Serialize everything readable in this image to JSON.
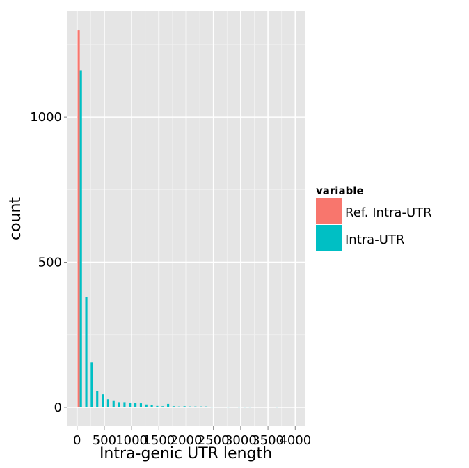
{
  "chart_data": {
    "type": "bar",
    "title": "",
    "xlabel": "Intra-genic UTR length",
    "ylabel": "count",
    "xlim": [
      -175,
      4175
    ],
    "ylim": [
      -65,
      1365
    ],
    "x_ticks": [
      0,
      500,
      1000,
      1500,
      2000,
      2500,
      3000,
      3500,
      4000
    ],
    "x_tick_labels": [
      "0",
      "500",
      "1000",
      "1500",
      "2000",
      "2500",
      "3000",
      "3500",
      "4000"
    ],
    "y_ticks": [
      0,
      500,
      1000
    ],
    "y_tick_labels": [
      "0",
      "500",
      "1000"
    ],
    "grid": true,
    "bin_width": 100,
    "bar_width": 40,
    "x": [
      50,
      150,
      250,
      350,
      450,
      550,
      650,
      750,
      850,
      950,
      1050,
      1150,
      1250,
      1350,
      1450,
      1550,
      1650,
      1750,
      1850,
      1950,
      2050,
      2150,
      2250,
      2350,
      2450,
      2550,
      2650,
      2750,
      2850,
      2950,
      3050,
      3150,
      3250,
      3350,
      3450,
      3550,
      3650,
      3750,
      3850,
      3950
    ],
    "series": [
      {
        "name": "Ref. Intra-UTR",
        "color": "#F8766D",
        "offset": -20,
        "values": [
          1300,
          0,
          0,
          0,
          0,
          0,
          0,
          0,
          0,
          0,
          0,
          0,
          0,
          0,
          0,
          0,
          0,
          0,
          0,
          0,
          0,
          0,
          0,
          0,
          0,
          0,
          0,
          0,
          0,
          0,
          0,
          0,
          0,
          0,
          0,
          0,
          0,
          0,
          0,
          0
        ]
      },
      {
        "name": "Intra-UTR",
        "color": "#00BFC4",
        "offset": 20,
        "values": [
          1160,
          380,
          155,
          55,
          45,
          28,
          22,
          18,
          18,
          16,
          15,
          14,
          10,
          8,
          5,
          4,
          12,
          4,
          3,
          4,
          3,
          3,
          3,
          3,
          1,
          0,
          2,
          1,
          0,
          1,
          1,
          1,
          2,
          0,
          2,
          0,
          1,
          0,
          2,
          0
        ]
      }
    ],
    "legend": {
      "title": "variable",
      "position": "right",
      "entries": [
        "Ref. Intra-UTR",
        "Intra-UTR"
      ]
    }
  }
}
